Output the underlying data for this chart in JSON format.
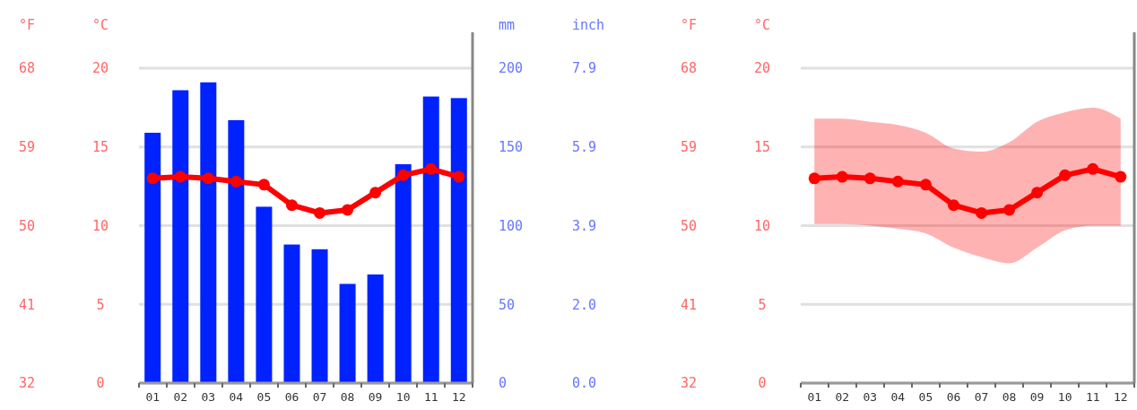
{
  "chart_data": [
    {
      "type": "bar",
      "categories": [
        "01",
        "02",
        "03",
        "04",
        "05",
        "06",
        "07",
        "08",
        "09",
        "10",
        "11",
        "12"
      ],
      "series": [
        {
          "axis": "y2",
          "color": "#0022ff",
          "values": [
            159,
            186,
            191,
            167,
            112,
            88,
            85,
            63,
            69,
            139,
            182,
            181
          ]
        },
        {
          "type": "line",
          "color": "#ff0000",
          "values": [
            13.0,
            13.1,
            13.0,
            12.8,
            12.6,
            11.3,
            10.8,
            11.0,
            12.1,
            13.2,
            13.6,
            13.1
          ]
        }
      ],
      "ylabel": "°C",
      "ylim": [
        0,
        20
      ],
      "yticks": [
        0,
        5,
        10,
        15,
        20
      ],
      "y2label": "mm",
      "y2lim": [
        0,
        200
      ],
      "y2ticks": [
        0,
        50,
        100,
        150,
        200
      ],
      "y3label": "°F",
      "y3lim": [
        32,
        68
      ],
      "y3ticks": [
        32,
        41,
        50,
        59,
        68
      ],
      "annotations": [
        "inch",
        "0.0",
        "2.0",
        "3.9",
        "5.9",
        "7.9"
      ],
      "grid": "y",
      "marker": "circle",
      "line_style": "solid"
    },
    {
      "type": "line",
      "categories": [
        "01",
        "02",
        "03",
        "04",
        "05",
        "06",
        "07",
        "08",
        "09",
        "10",
        "11",
        "12"
      ],
      "series": [
        {
          "color": "#ff0000",
          "values": [
            13.0,
            13.1,
            13.0,
            12.8,
            12.6,
            11.3,
            10.8,
            11.0,
            12.1,
            13.2,
            13.6,
            13.1
          ],
          "lower": [
            10.1,
            10.1,
            10.0,
            9.8,
            9.5,
            8.6,
            8.0,
            7.6,
            8.6,
            9.7,
            10.0,
            10.0
          ],
          "upper": [
            16.8,
            16.8,
            16.6,
            16.4,
            15.9,
            14.9,
            14.7,
            15.3,
            16.6,
            17.2,
            17.5,
            16.8
          ]
        }
      ],
      "ylabel": "°C",
      "ylim": [
        0,
        20
      ],
      "yticks": [
        0,
        5,
        10,
        15,
        20
      ],
      "y3label": "°F",
      "y3lim": [
        32,
        68
      ],
      "y3ticks": [
        32,
        41,
        50,
        59,
        68
      ],
      "grid": "y",
      "marker": "circle",
      "line_style": "solid"
    }
  ]
}
